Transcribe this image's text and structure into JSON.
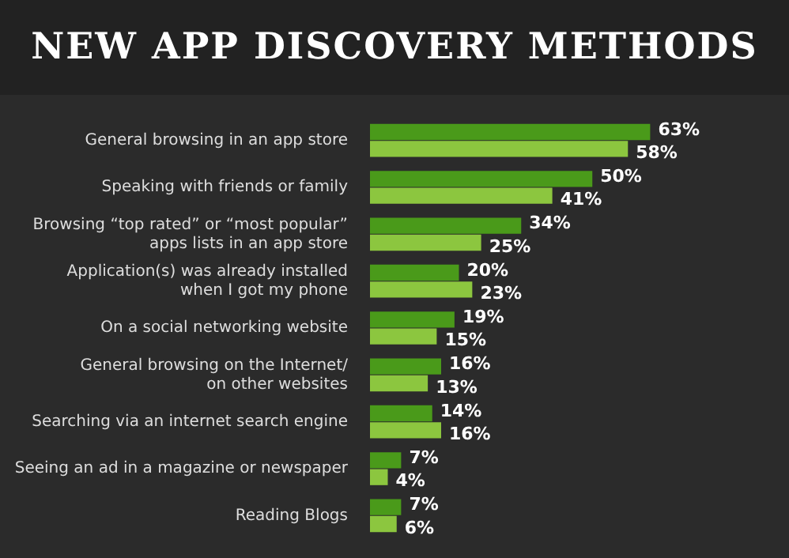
{
  "chart_data": {
    "type": "bar",
    "orientation": "horizontal",
    "title": "NEW APP DISCOVERY METHODS",
    "categories": [
      "General browsing in an app store",
      "Speaking with friends or family",
      "Browsing “top rated” or “most popular”\napps lists in an app store",
      "Application(s) was already installed\nwhen I got my phone",
      "On a social networking website",
      "General browsing on the Internet/\non other websites",
      "Searching via an internet search engine",
      "Seeing an ad in a magazine or newspaper",
      "Reading Blogs"
    ],
    "series": [
      {
        "color": "#4a9a1a",
        "values": [
          63,
          50,
          34,
          20,
          19,
          16,
          14,
          7,
          7
        ],
        "value_labels": [
          "63%",
          "50%",
          "34%",
          "20%",
          "19%",
          "16%",
          "14%",
          "7%",
          "7%"
        ]
      },
      {
        "color": "#8cc63f",
        "values": [
          58,
          41,
          25,
          23,
          15,
          13,
          16,
          4,
          6
        ],
        "value_labels": [
          "58%",
          "41%",
          "25%",
          "23%",
          "15%",
          "13%",
          "16%",
          "4%",
          "6%"
        ]
      }
    ]
  }
}
